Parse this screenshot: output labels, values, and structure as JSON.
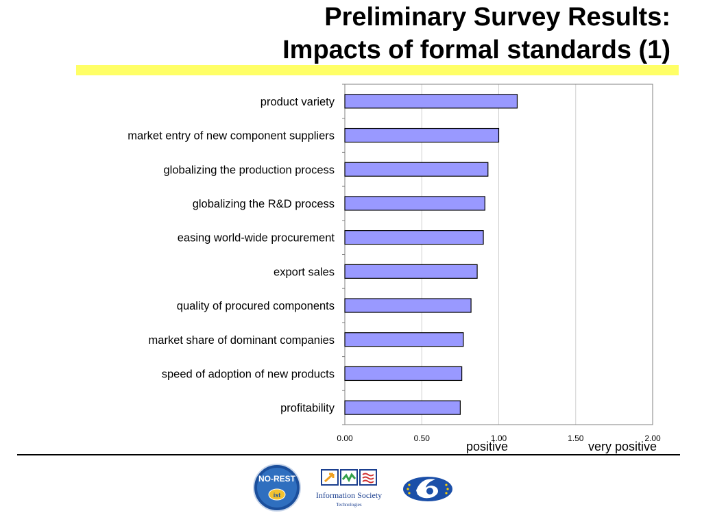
{
  "slide": {
    "title_line1": "Preliminary Survey Results:",
    "title_line2": "Impacts of formal standards (1)",
    "accent_color": "#ffff66",
    "word_positive": "positive",
    "word_very_positive": "very positive",
    "logos": {
      "norest_text1": "NO-REST",
      "norest_text2": "ist",
      "ist_text1": "Information Society",
      "ist_text2": "Technologies"
    }
  },
  "chart_data": {
    "type": "bar",
    "orientation": "horizontal",
    "categories": [
      "product variety",
      "market entry of new component suppliers",
      "globalizing the production process",
      "globalizing the R&D process",
      "easing world-wide procurement",
      "export sales",
      "quality of procured components",
      "market share of dominant companies",
      "speed of adoption of new products",
      "profitability"
    ],
    "values": [
      1.12,
      1.0,
      0.93,
      0.91,
      0.9,
      0.86,
      0.82,
      0.77,
      0.76,
      0.75
    ],
    "xlim": [
      0,
      2
    ],
    "xticks": [
      "0.00",
      "0.50",
      "1.00",
      "1.50",
      "2.00"
    ],
    "bar_color": "#9999ff",
    "grid": true
  }
}
